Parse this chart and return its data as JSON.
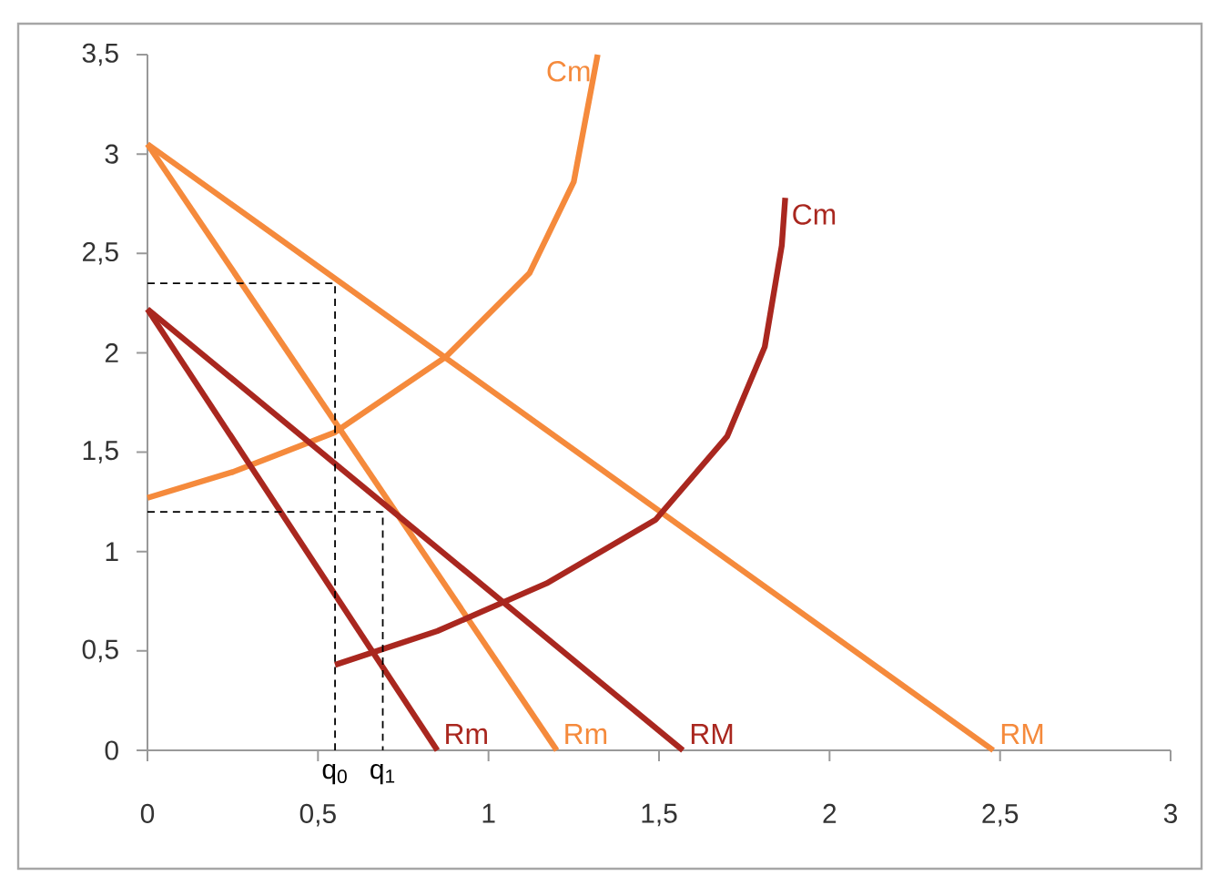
{
  "chart_data": {
    "type": "line",
    "xlim": [
      0,
      3
    ],
    "ylim": [
      0,
      3.5
    ],
    "xticks": [
      0,
      {
        "value": 0.5,
        "label": "0,5"
      },
      1,
      {
        "value": 1.5,
        "label": "1,5"
      },
      2,
      {
        "value": 2.5,
        "label": "2,5"
      },
      3
    ],
    "yticks": [
      0,
      {
        "value": 0.5,
        "label": "0,5"
      },
      1,
      {
        "value": 1.5,
        "label": "1,5"
      },
      2,
      {
        "value": 2.5,
        "label": "2,5"
      },
      3,
      {
        "value": 3.5,
        "label": "3,5"
      }
    ],
    "grid": false,
    "legend": false,
    "marker": "none",
    "series": [
      {
        "name": "RM",
        "color": "#f58a3c",
        "x": [
          0,
          2.48
        ],
        "values": [
          3.05,
          0
        ]
      },
      {
        "name": "Rm",
        "color": "#f58a3c",
        "x": [
          0,
          1.2
        ],
        "values": [
          3.05,
          0
        ]
      },
      {
        "name": "Cm",
        "color": "#f58a3c",
        "x": [
          0,
          0.25,
          0.55,
          0.875,
          1.12,
          1.25,
          1.32
        ],
        "values": [
          1.27,
          1.4,
          1.6,
          1.98,
          2.4,
          2.86,
          3.5
        ]
      },
      {
        "name": "RM",
        "color": "#a9271f",
        "x": [
          0,
          1.57
        ],
        "values": [
          2.22,
          0
        ]
      },
      {
        "name": "Rm",
        "color": "#a9271f",
        "x": [
          0,
          0.85
        ],
        "values": [
          2.22,
          0
        ]
      },
      {
        "name": "Cm",
        "color": "#a9271f",
        "x": [
          0.55,
          0.85,
          1.17,
          1.49,
          1.7,
          1.81,
          1.86,
          1.87
        ],
        "values": [
          0.43,
          0.6,
          0.84,
          1.16,
          1.58,
          2.03,
          2.54,
          2.78
        ]
      },
      {
        "color": "#000000",
        "line_style": "dashed",
        "x": [
          0,
          0.55,
          0.55
        ],
        "values": [
          2.35,
          2.35,
          0
        ]
      },
      {
        "color": "#000000",
        "line_style": "dashed",
        "x": [
          0,
          0.69,
          0.69
        ],
        "values": [
          1.2,
          1.2,
          0
        ]
      }
    ],
    "annotations": [
      {
        "text": "q$_{0}$",
        "x": 0.55,
        "y": 0
      },
      {
        "text": "q$_{1}$",
        "x": 0.69,
        "y": 0
      }
    ]
  }
}
